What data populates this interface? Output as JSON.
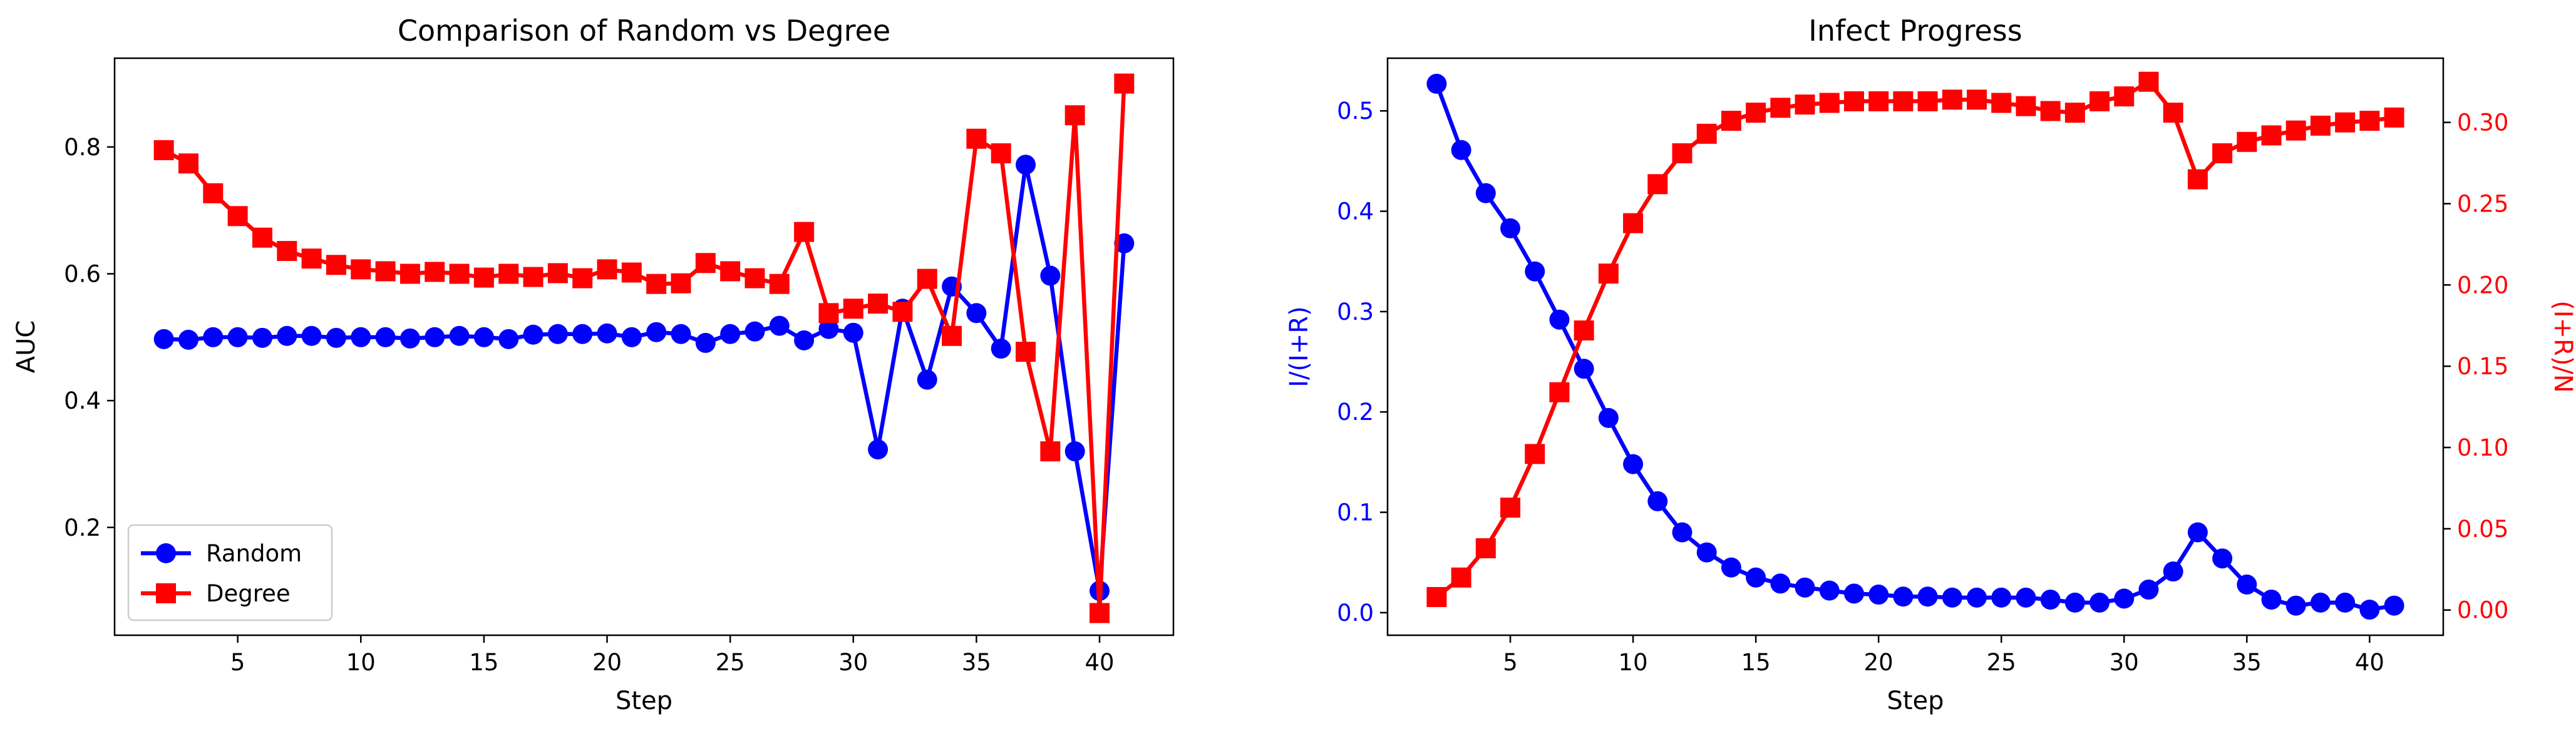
{
  "chart_data": [
    {
      "type": "line",
      "title": "Comparison of Random vs Degree",
      "xlabel": "Step",
      "ylabel": "AUC",
      "xlim": [
        0,
        43
      ],
      "ylim": [
        0.03,
        0.94
      ],
      "xticks": [
        5,
        10,
        15,
        20,
        25,
        30,
        35,
        40
      ],
      "yticks": [
        0.2,
        0.4,
        0.6,
        0.8
      ],
      "legend": "lower-left",
      "x": [
        2,
        3,
        4,
        5,
        6,
        7,
        8,
        9,
        10,
        11,
        12,
        13,
        14,
        15,
        16,
        17,
        18,
        19,
        20,
        21,
        22,
        23,
        24,
        25,
        26,
        27,
        28,
        29,
        30,
        31,
        32,
        33,
        34,
        35,
        36,
        37,
        38,
        39,
        40,
        41
      ],
      "series": [
        {
          "name": "Random",
          "color": "#0000ff",
          "marker": "circle",
          "values": [
            0.497,
            0.496,
            0.5,
            0.5,
            0.499,
            0.502,
            0.502,
            0.499,
            0.5,
            0.5,
            0.498,
            0.5,
            0.502,
            0.5,
            0.497,
            0.504,
            0.505,
            0.505,
            0.506,
            0.5,
            0.508,
            0.505,
            0.491,
            0.505,
            0.509,
            0.518,
            0.495,
            0.513,
            0.507,
            0.323,
            0.545,
            0.433,
            0.58,
            0.538,
            0.482,
            0.772,
            0.597,
            0.32,
            0.1,
            0.648
          ]
        },
        {
          "name": "Degree",
          "color": "#ff0000",
          "marker": "square",
          "values": [
            0.795,
            0.774,
            0.727,
            0.691,
            0.657,
            0.636,
            0.624,
            0.614,
            0.607,
            0.604,
            0.6,
            0.603,
            0.6,
            0.594,
            0.6,
            0.595,
            0.601,
            0.593,
            0.607,
            0.602,
            0.584,
            0.585,
            0.617,
            0.604,
            0.593,
            0.584,
            0.666,
            0.538,
            0.545,
            0.553,
            0.54,
            0.592,
            0.502,
            0.813,
            0.79,
            0.477,
            0.32,
            0.85,
            0.065,
            0.9
          ]
        }
      ]
    },
    {
      "type": "line",
      "title": "Infect Progress",
      "xlabel": "Step",
      "ylabel": "I/(I+R)",
      "ylabel_right": "(I+R)/N",
      "xlim": [
        0,
        43
      ],
      "ylim": [
        -0.0225,
        0.5525
      ],
      "ylim_right": [
        -0.0155,
        0.3395
      ],
      "xticks": [
        5,
        10,
        15,
        20,
        25,
        30,
        35,
        40
      ],
      "yticks": [
        0.0,
        0.1,
        0.2,
        0.3,
        0.4,
        0.5
      ],
      "yticks_right": [
        0.0,
        0.05,
        0.1,
        0.15,
        0.2,
        0.25,
        0.3
      ],
      "x": [
        2,
        3,
        4,
        5,
        6,
        7,
        8,
        9,
        10,
        11,
        12,
        13,
        14,
        15,
        16,
        17,
        18,
        19,
        20,
        21,
        22,
        23,
        24,
        25,
        26,
        27,
        28,
        29,
        30,
        31,
        32,
        33,
        34,
        35,
        36,
        37,
        38,
        39,
        40,
        41
      ],
      "series": [
        {
          "axis": "left",
          "color": "#0000ff",
          "marker": "circle",
          "values": [
            0.527,
            0.461,
            0.418,
            0.383,
            0.34,
            0.292,
            0.243,
            0.194,
            0.148,
            0.111,
            0.08,
            0.06,
            0.045,
            0.035,
            0.029,
            0.025,
            0.022,
            0.019,
            0.018,
            0.016,
            0.016,
            0.015,
            0.015,
            0.015,
            0.015,
            0.013,
            0.01,
            0.01,
            0.014,
            0.023,
            0.041,
            0.08,
            0.054,
            0.028,
            0.013,
            0.007,
            0.01,
            0.01,
            0.003,
            0.007
          ]
        },
        {
          "axis": "right",
          "color": "#ff0000",
          "marker": "square",
          "values": [
            0.008,
            0.02,
            0.038,
            0.063,
            0.096,
            0.134,
            0.172,
            0.207,
            0.238,
            0.262,
            0.281,
            0.293,
            0.301,
            0.306,
            0.309,
            0.311,
            0.312,
            0.313,
            0.313,
            0.313,
            0.313,
            0.314,
            0.314,
            0.312,
            0.31,
            0.307,
            0.306,
            0.313,
            0.316,
            0.325,
            0.306,
            0.265,
            0.281,
            0.288,
            0.292,
            0.295,
            0.298,
            0.3,
            0.301,
            0.303
          ]
        }
      ]
    }
  ]
}
